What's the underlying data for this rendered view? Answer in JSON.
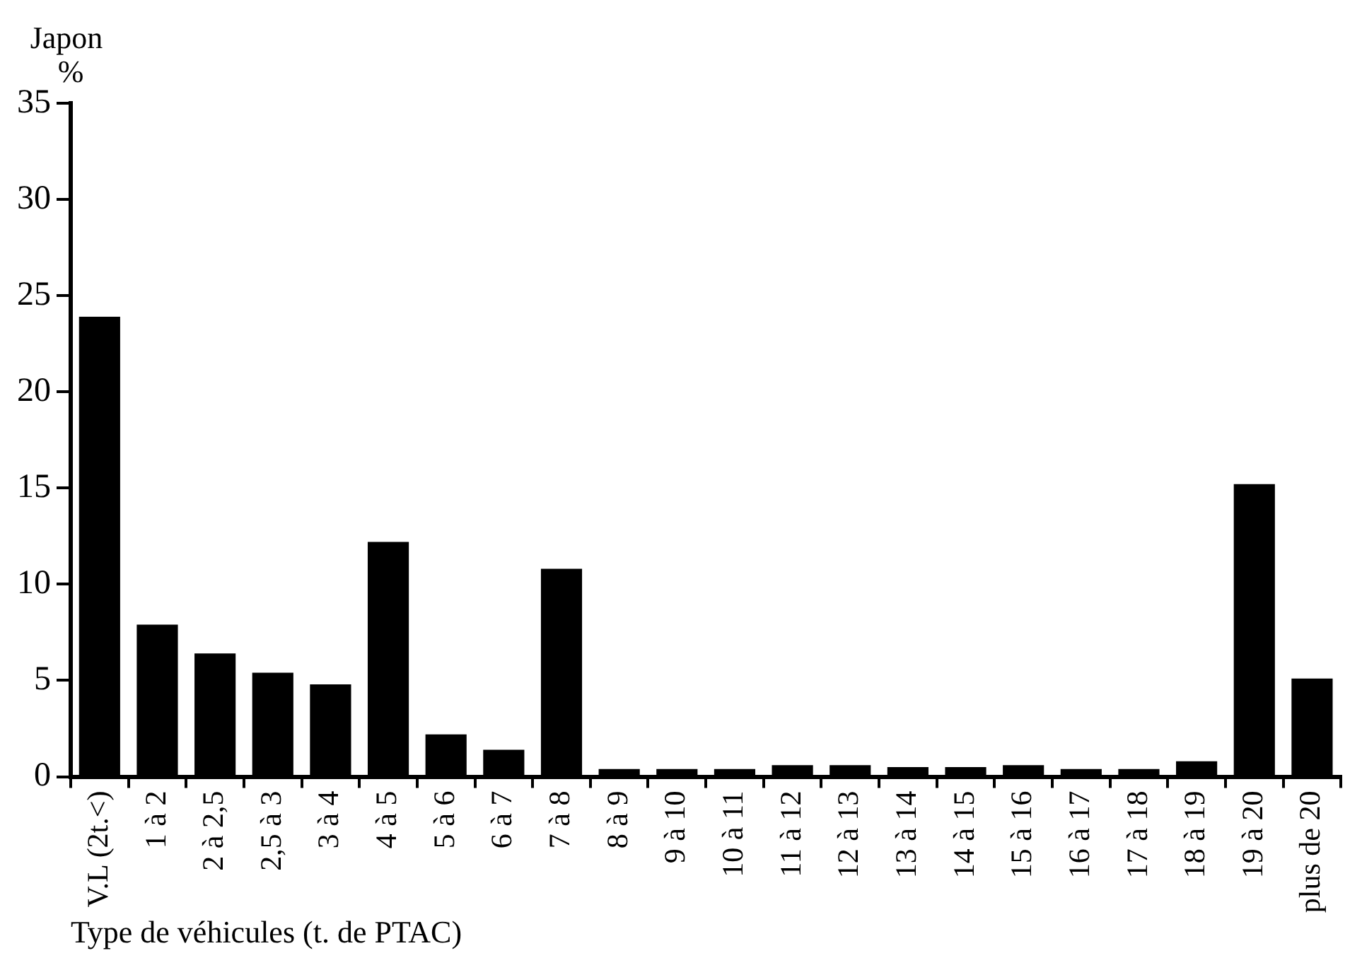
{
  "chart_data": {
    "type": "bar",
    "title": "Japon",
    "ylabel": "%",
    "xlabel": "Type de véhicules (t. de PTAC)",
    "categories": [
      "V.L (2t.<)",
      "1 à 2",
      "2 à 2,5",
      "2,5 à 3",
      "3 à 4",
      "4 à 5",
      "5 à 6",
      "6 à 7",
      "7 à 8",
      "8 à 9",
      "9 à 10",
      "10 à 11",
      "11 à 12",
      "12 à 13",
      "13 à 14",
      "14 à 15",
      "15 à 16",
      "16 à 17",
      "17 à 18",
      "18 à 19",
      "19 à 20",
      "plus de 20"
    ],
    "values": [
      23.9,
      7.9,
      6.4,
      5.4,
      4.8,
      12.2,
      2.2,
      1.4,
      10.8,
      0.4,
      0.4,
      0.4,
      0.6,
      0.6,
      0.5,
      0.5,
      0.6,
      0.4,
      0.4,
      0.8,
      15.2,
      5.1
    ],
    "color": "#000000",
    "ylim": [
      0,
      35
    ],
    "yticks": [
      0,
      5,
      10,
      15,
      20,
      25,
      30,
      35
    ],
    "grid": false,
    "legend": false
  }
}
